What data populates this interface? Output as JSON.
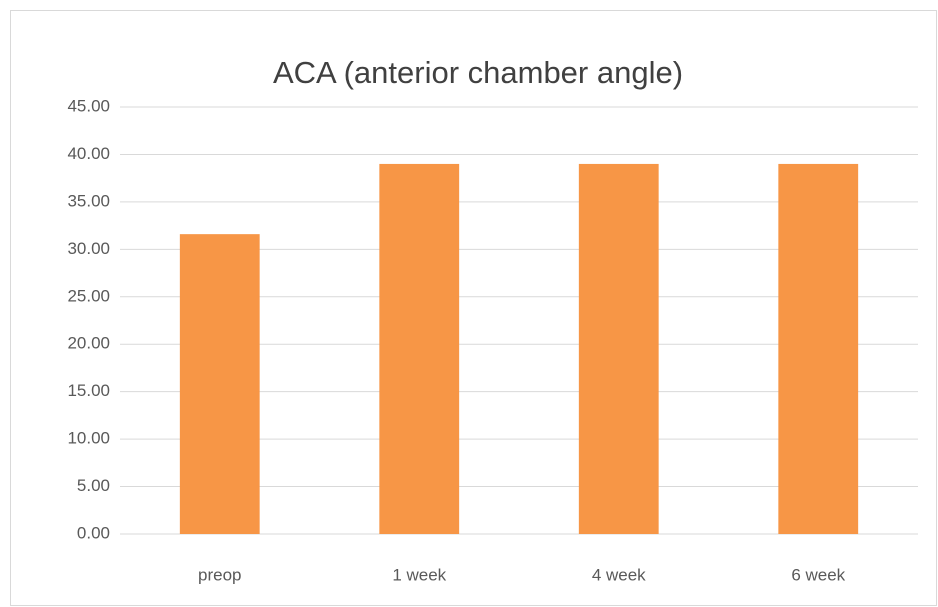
{
  "chart_data": {
    "type": "bar",
    "title": "ACA (anterior chamber angle)",
    "categories": [
      "preop",
      "1 week",
      "4 week",
      "6 week"
    ],
    "values": [
      31.6,
      39.0,
      39.0,
      39.0
    ],
    "color": "#f79646",
    "ylim": [
      0,
      45
    ],
    "yticks": [
      {
        "value": 0,
        "label": "0.00"
      },
      {
        "value": 5,
        "label": "5.00"
      },
      {
        "value": 10,
        "label": "10.00"
      },
      {
        "value": 15,
        "label": "15.00"
      },
      {
        "value": 20,
        "label": "20.00"
      },
      {
        "value": 25,
        "label": "25.00"
      },
      {
        "value": 30,
        "label": "30.00"
      },
      {
        "value": 35,
        "label": "35.00"
      },
      {
        "value": 40,
        "label": "40.00"
      },
      {
        "value": 45,
        "label": "45.00"
      }
    ],
    "grid": true
  }
}
